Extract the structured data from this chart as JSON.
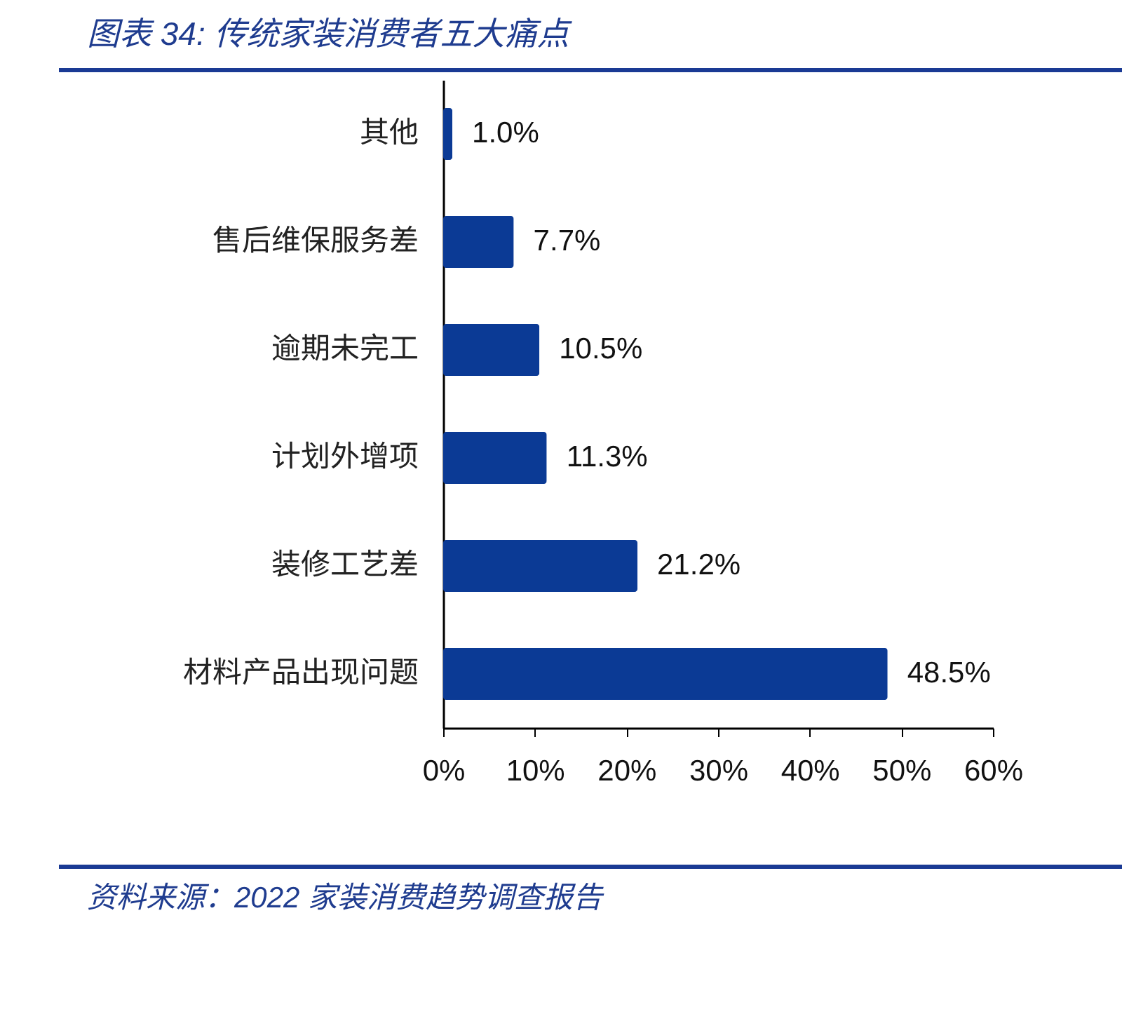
{
  "chart_data": {
    "type": "bar",
    "orientation": "horizontal",
    "title": "图表 34: 传统家装消费者五大痛点",
    "categories": [
      "其他",
      "售后维保服务差",
      "逾期未完工",
      "计划外增项",
      "装修工艺差",
      "材料产品出现问题"
    ],
    "values": [
      1.0,
      7.7,
      10.5,
      11.3,
      21.2,
      48.5
    ],
    "value_labels": [
      "1.0%",
      "7.7%",
      "10.5%",
      "11.3%",
      "21.2%",
      "48.5%"
    ],
    "color": "#0b3a95",
    "xlim": [
      0,
      60
    ],
    "xticks": [
      {
        "value": 0,
        "label": "0%"
      },
      {
        "value": 10,
        "label": "10%"
      },
      {
        "value": 20,
        "label": "20%"
      },
      {
        "value": 30,
        "label": "30%"
      },
      {
        "value": 40,
        "label": "40%"
      },
      {
        "value": 50,
        "label": "50%"
      },
      {
        "value": 60,
        "label": "60%"
      }
    ],
    "grid": false,
    "annotations": [
      "资料来源：2022 家装消费趋势调查报告"
    ]
  }
}
